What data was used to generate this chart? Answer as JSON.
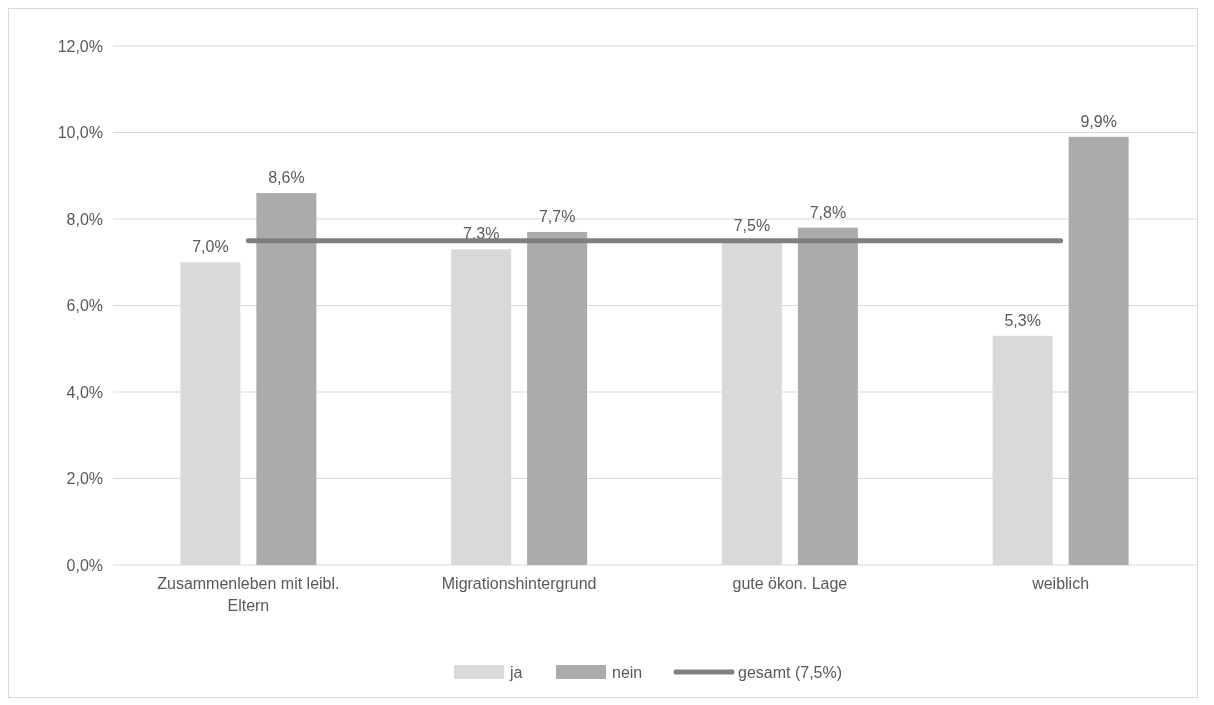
{
  "chart_data": {
    "type": "bar",
    "categories": [
      "Zusammenleben mit leibl. Eltern",
      "Migrationshintergrund",
      "gute ökon. Lage",
      "weiblich"
    ],
    "series": [
      {
        "name": "ja",
        "color": "#d9d9d9",
        "values": [
          7.0,
          7.3,
          7.5,
          5.3
        ],
        "value_labels": [
          "7,0%",
          "7,3%",
          "7,5%",
          "5,3%"
        ]
      },
      {
        "name": "nein",
        "color": "#ababab",
        "values": [
          8.6,
          7.7,
          7.8,
          9.9
        ],
        "value_labels": [
          "8,6%",
          "7,7%",
          "7,8%",
          "9,9%"
        ]
      },
      {
        "name": "gesamt (7,5%)",
        "type": "line",
        "color": "#7f7f7f",
        "values": [
          7.5,
          7.5,
          7.5,
          7.5
        ]
      }
    ],
    "ylim": [
      0,
      12
    ],
    "yticks": [
      {
        "value": 0,
        "label": "0,0%"
      },
      {
        "value": 2,
        "label": "2,0%"
      },
      {
        "value": 4,
        "label": "4,0%"
      },
      {
        "value": 6,
        "label": "6,0%"
      },
      {
        "value": 8,
        "label": "8,0%"
      },
      {
        "value": 10,
        "label": "10,0%"
      },
      {
        "value": 12,
        "label": "12,0%"
      }
    ],
    "grid": "y",
    "legend": "bottom"
  }
}
